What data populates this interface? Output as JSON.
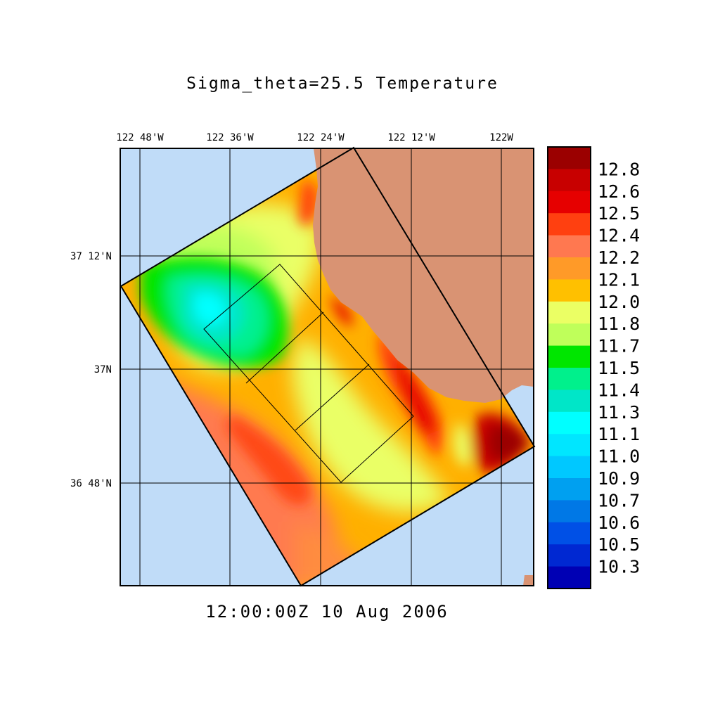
{
  "title": "Sigma_theta=25.5 Temperature",
  "time": "12:00:00Z  10 Aug 2006",
  "axes": {
    "lon_ticks": [
      "122 48'W",
      "122 36'W",
      "122 24'W",
      "122 12'W",
      "122W"
    ],
    "lat_ticks": [
      "37 12'N",
      "37N",
      "36 48'N"
    ]
  },
  "colors": {
    "ocean": "#c0dcf8",
    "land": "#d99373",
    "grid": "#000000"
  },
  "colorbar": {
    "labels": [
      "12.8",
      "12.6",
      "12.5",
      "12.4",
      "12.2",
      "12.1",
      "12.0",
      "11.8",
      "11.7",
      "11.5",
      "11.4",
      "11.3",
      "11.1",
      "11.0",
      "10.9",
      "10.7",
      "10.6",
      "10.5",
      "10.3"
    ],
    "colors": [
      "#9b0000",
      "#c80000",
      "#e60000",
      "#ff4010",
      "#ff7850",
      "#ff9a28",
      "#ffc000",
      "#ebff64",
      "#bfff5a",
      "#00e600",
      "#00f08c",
      "#00e6c8",
      "#00ffff",
      "#00e6ff",
      "#00c8ff",
      "#00a0f0",
      "#0078e6",
      "#0050e6",
      "#0028d2",
      "#0000b4"
    ]
  }
}
